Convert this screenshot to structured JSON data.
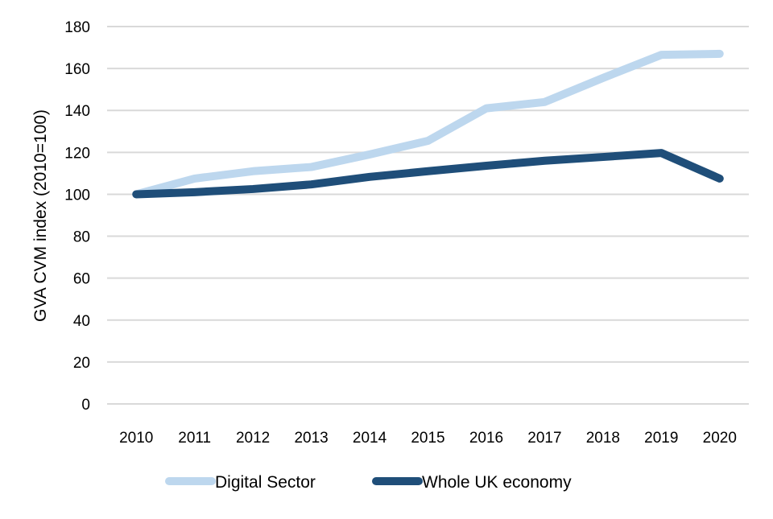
{
  "chart_data": {
    "type": "line",
    "title": "",
    "xlabel": "",
    "ylabel": "GVA  CVM index (2010=100)",
    "ylim": [
      0,
      180
    ],
    "yticks": [
      0,
      20,
      40,
      60,
      80,
      100,
      120,
      140,
      160,
      180
    ],
    "grid": true,
    "legend_position": "bottom",
    "categories": [
      "2010",
      "2011",
      "2012",
      "2013",
      "2014",
      "2015",
      "2016",
      "2017",
      "2018",
      "2019",
      "2020"
    ],
    "series": [
      {
        "name": "Digital Sector",
        "color": "#bdd7ee",
        "values": [
          100,
          107.5,
          111,
          113,
          119,
          125.5,
          141,
          144,
          155.5,
          166.5,
          167
        ]
      },
      {
        "name": "Whole UK economy",
        "color": "#1f4e79",
        "values": [
          100,
          101,
          102.5,
          104.7,
          108.3,
          111,
          113.6,
          116,
          117.8,
          119.7,
          107.5
        ]
      }
    ]
  }
}
